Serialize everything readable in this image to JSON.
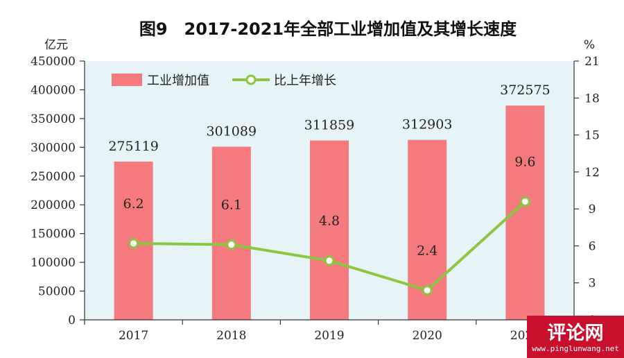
{
  "chart_data": {
    "type": "bar",
    "title": "图9　2017-2021年全部工业增加值及其增长速度",
    "categories": [
      "2017",
      "2018",
      "2019",
      "2020",
      "2021"
    ],
    "series": [
      {
        "name": "工业增加值",
        "kind": "bar",
        "axis": "left",
        "values": [
          275119,
          301089,
          311859,
          312903,
          372575
        ],
        "labels": [
          "275119",
          "301089",
          "311859",
          "312903",
          "372575"
        ],
        "color": "#f47a7e"
      },
      {
        "name": "比上年增长",
        "kind": "line",
        "axis": "right",
        "values": [
          6.2,
          6.1,
          4.8,
          2.4,
          9.6
        ],
        "labels": [
          "6.2",
          "6.1",
          "4.8",
          "2.4",
          "9.6"
        ],
        "color": "#8cc63f"
      }
    ],
    "y_left": {
      "unit": "亿元",
      "range": [
        0,
        450000
      ],
      "ticks": [
        "0",
        "50000",
        "100000",
        "150000",
        "200000",
        "250000",
        "300000",
        "350000",
        "400000",
        "450000"
      ]
    },
    "y_right": {
      "unit": "%",
      "range": [
        0,
        21
      ],
      "ticks": [
        "0",
        "3",
        "6",
        "9",
        "12",
        "15",
        "18",
        "21"
      ]
    },
    "legend_placement": "top-left",
    "plot_background": "#e6f4f8",
    "grid": false
  },
  "watermark": {
    "text": "评论网",
    "url": "www.pinglunwang.net",
    "color": "#c8102e"
  }
}
